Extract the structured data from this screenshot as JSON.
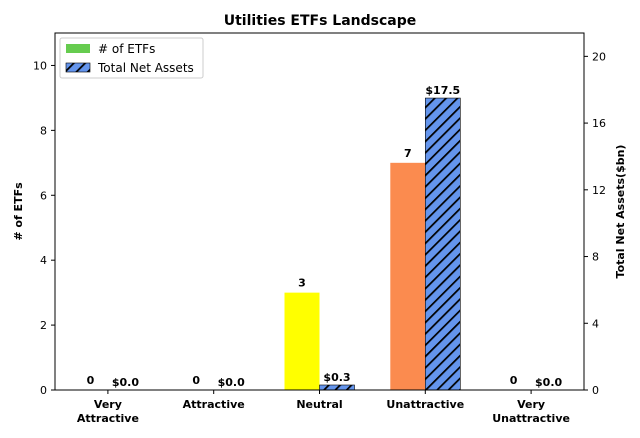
{
  "chart_data": {
    "type": "bar",
    "title": "Utilities ETFs Landscape",
    "categories": [
      [
        "Very",
        "Attractive"
      ],
      [
        "Attractive"
      ],
      [
        "Neutral"
      ],
      [
        "Unattractive"
      ],
      [
        "Very",
        "Unattractive"
      ]
    ],
    "series": [
      {
        "name": "# of ETFs",
        "axis": "left",
        "values": [
          0,
          0,
          3,
          7,
          0
        ],
        "labels": [
          "0",
          "0",
          "3",
          "7",
          "0"
        ],
        "colors": [
          "#00a933",
          "#7ac143",
          "#ffff00",
          "#fb8b4f",
          "#ff0000"
        ],
        "legend_color": "#66cc4f"
      },
      {
        "name": "Total Net Assets",
        "axis": "right",
        "values": [
          0.0,
          0.0,
          0.3,
          17.5,
          0.0
        ],
        "labels": [
          "$0.0",
          "$0.0",
          "$0.3",
          "$17.5",
          "$0.0"
        ],
        "color": "#6495ed",
        "hatch": "diagonal"
      }
    ],
    "ylabel": "# of ETFs",
    "y2label": "Total Net Assets($bn)",
    "ylim": [
      0,
      11
    ],
    "y2lim": [
      0,
      21.4
    ],
    "yticks": [
      0,
      2,
      4,
      6,
      8,
      10
    ],
    "y2ticks": [
      0,
      4,
      8,
      12,
      16,
      20
    ],
    "grid": false,
    "legend": "top-left"
  }
}
